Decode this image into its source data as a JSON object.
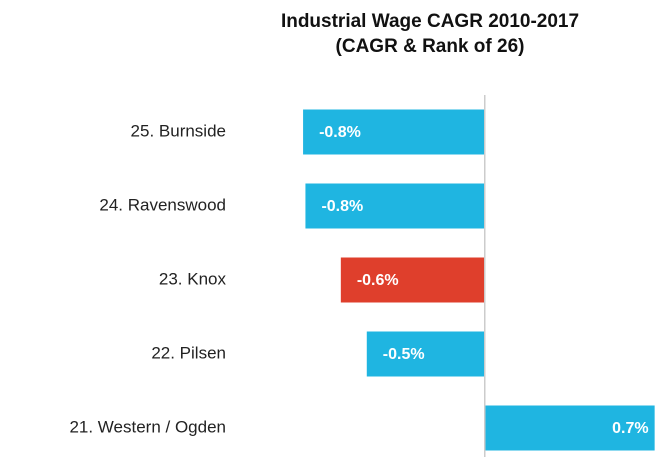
{
  "chart_data": {
    "type": "hbar",
    "title": "Industrial Wage CAGR 2010-2017",
    "subtitle": "(CAGR & Rank of 26)",
    "categories": [
      "25. Burnside",
      "24. Ravenswood",
      "23. Knox",
      "22. Pilsen",
      "21. Western / Ogden"
    ],
    "values": [
      -0.77,
      -0.76,
      -0.61,
      -0.5,
      0.72
    ],
    "value_labels": [
      "-0.8%",
      "-0.8%",
      "-0.6%",
      "-0.5%",
      "0.7%"
    ],
    "colors": [
      "#1fb5e1",
      "#1fb5e1",
      "#df3f2c",
      "#1fb5e1",
      "#1fb5e1"
    ],
    "xlim": [
      -0.8,
      0.73
    ]
  }
}
